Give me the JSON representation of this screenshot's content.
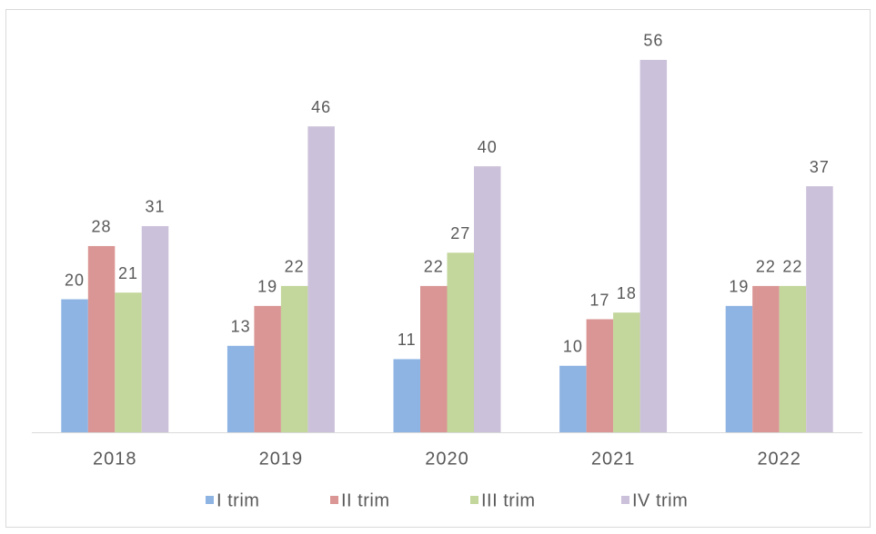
{
  "chart_data": {
    "type": "bar",
    "categories": [
      "2018",
      "2019",
      "2020",
      "2021",
      "2022"
    ],
    "series": [
      {
        "name": "I trim",
        "color": "#8eb4e3",
        "values": [
          20,
          13,
          11,
          10,
          19
        ]
      },
      {
        "name": "II trim",
        "color": "#d99694",
        "values": [
          28,
          19,
          22,
          17,
          22
        ]
      },
      {
        "name": "III trim",
        "color": "#c3d69b",
        "values": [
          21,
          22,
          27,
          18,
          22
        ]
      },
      {
        "name": "IV trim",
        "color": "#ccc1da",
        "values": [
          31,
          46,
          40,
          56,
          37
        ]
      }
    ],
    "ylim": [
      0,
      65
    ],
    "legend": "bottom"
  }
}
